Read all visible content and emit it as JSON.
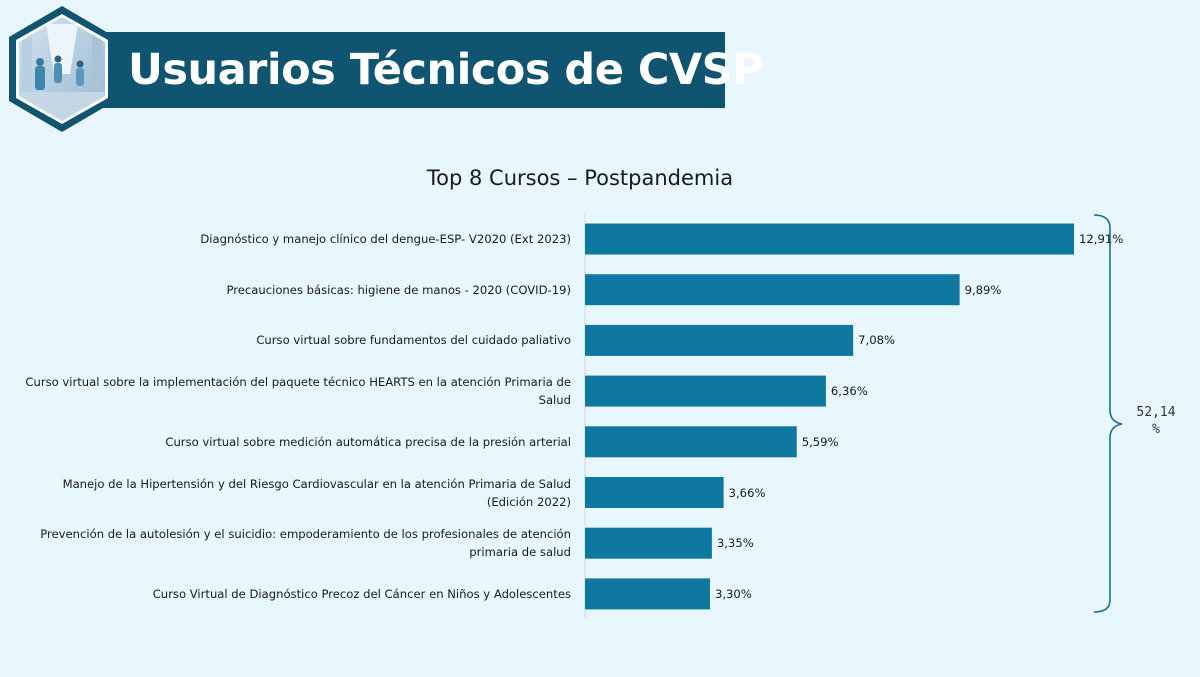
{
  "header": {
    "title": "Usuarios Técnicos de CVSP",
    "band_color": "#0f5470",
    "logo_icon": "hospital-corridor-photo"
  },
  "chart_data": {
    "type": "bar",
    "orientation": "horizontal",
    "title": "Top 8 Cursos – Postpandemia",
    "categories": [
      "Diagnóstico y manejo clínico del dengue-ESP- V2020 (Ext 2023)",
      "Precauciones básicas: higiene de manos - 2020 (COVID-19)",
      "Curso virtual sobre fundamentos del cuidado paliativo",
      "Curso virtual sobre la implementación del paquete técnico HEARTS en la atención Primaria de Salud",
      "Curso virtual sobre medición automática precisa de la presión arterial",
      "Manejo de la Hipertensión y del Riesgo Cardiovascular en la atención Primaria de Salud (Edición 2022)",
      "Prevención de la autolesión y el suicidio: empoderamiento de los profesionales de atención primaria de salud",
      "Curso Virtual de Diagnóstico Precoz del Cáncer en Niños y Adolescentes"
    ],
    "values": [
      12.91,
      9.89,
      7.08,
      6.36,
      5.59,
      3.66,
      3.35,
      3.3
    ],
    "value_labels": [
      "12,91%",
      "9,89%",
      "7,08%",
      "6,36%",
      "5,59%",
      "3,66%",
      "3,35%",
      "3,30%"
    ],
    "bar_color": "#0f78a0",
    "xlim": [
      0,
      12.91
    ],
    "grid": false,
    "legend": "none",
    "bracket_total_label": "52,14\n%"
  }
}
